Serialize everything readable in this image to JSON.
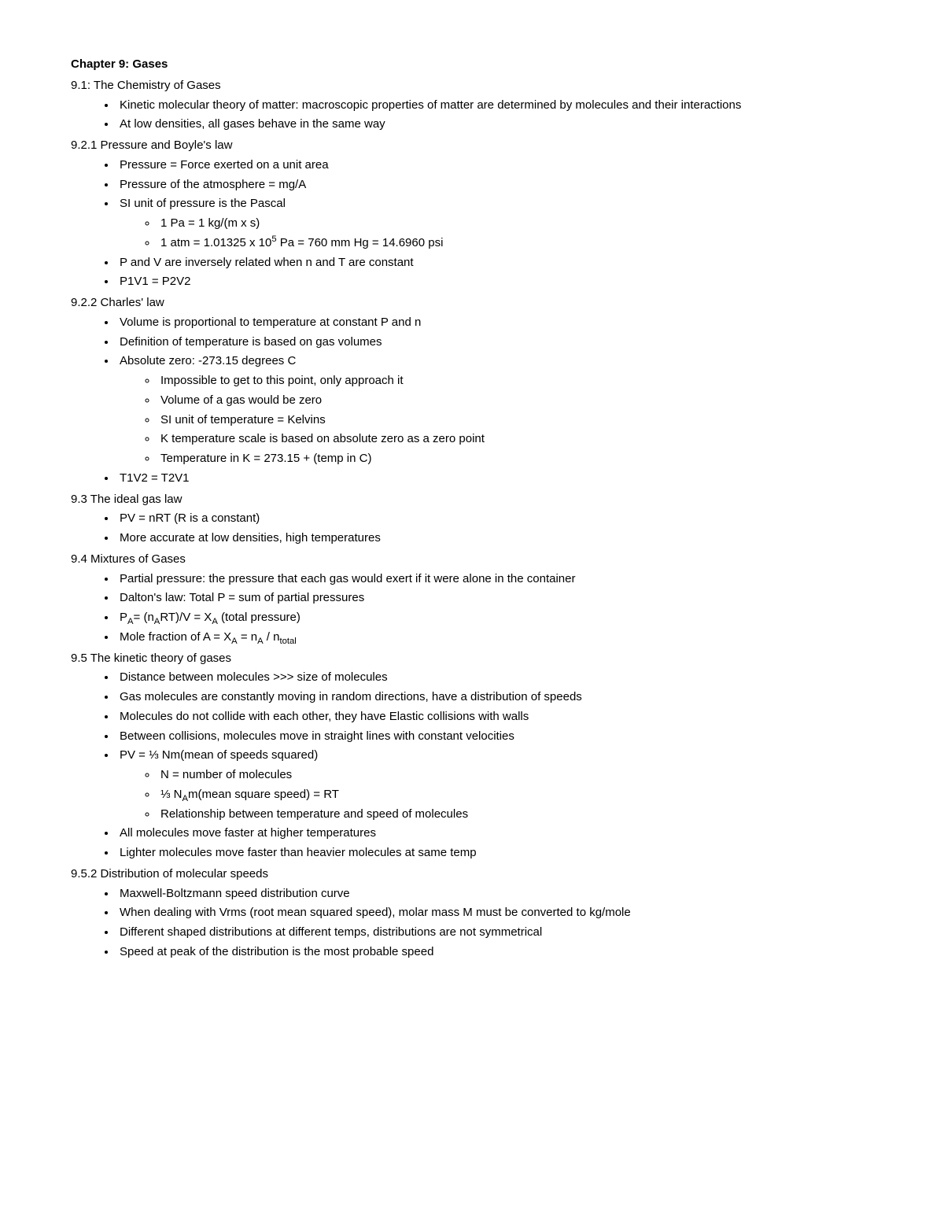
{
  "title": "Chapter 9: Gases",
  "sections": [
    {
      "heading": "9.1: The Chemistry of Gases",
      "items": [
        {
          "text": "Kinetic molecular theory of matter: macroscopic properties of matter are determined by molecules and their interactions"
        },
        {
          "text": "At low densities, all gases behave in the same way"
        }
      ]
    },
    {
      "heading": "9.2.1 Pressure and Boyle's law",
      "items": [
        {
          "text": "Pressure = Force exerted on a unit area"
        },
        {
          "text": "Pressure of the atmosphere = mg/A"
        },
        {
          "text": "SI unit of pressure is the Pascal",
          "sub": [
            {
              "text": "1 Pa = 1 kg/(m x s)"
            },
            {
              "html": "1 atm = 1.01325 x 10<sup>5</sup> Pa = 760 mm Hg = 14.6960 psi"
            }
          ]
        },
        {
          "text": "P and V are inversely related when n and T are constant"
        },
        {
          "text": "P1V1 = P2V2"
        }
      ]
    },
    {
      "heading": "9.2.2 Charles' law",
      "items": [
        {
          "text": "Volume is proportional to temperature at constant P and n"
        },
        {
          "text": "Definition of temperature is based on gas volumes"
        },
        {
          "text": "Absolute zero: -273.15 degrees C",
          "sub": [
            {
              "text": "Impossible to get to this point, only approach it"
            },
            {
              "text": "Volume of a gas would be zero"
            },
            {
              "text": "SI unit of temperature = Kelvins"
            },
            {
              "text": "K temperature scale is based on absolute zero as a zero point"
            },
            {
              "text": "Temperature in K = 273.15 + (temp in C)"
            }
          ]
        },
        {
          "text": "T1V2 = T2V1"
        }
      ]
    },
    {
      "heading": "9.3 The ideal gas law",
      "items": [
        {
          "text": "PV = nRT (R is a constant)"
        },
        {
          "text": "More accurate at low densities, high temperatures"
        }
      ]
    },
    {
      "heading": "9.4 Mixtures of Gases",
      "items": [
        {
          "text": "Partial pressure: the pressure that each gas would exert if it were alone in the container"
        },
        {
          "text": "Dalton's law: Total P = sum of partial pressures"
        },
        {
          "html": "P<sub>A</sub>= (n<sub>A</sub>RT)/V = X<sub>A</sub> (total pressure)"
        },
        {
          "html": "Mole fraction of A = X<sub>A</sub> = n<sub>A</sub> / n<sub>total</sub>"
        }
      ]
    },
    {
      "heading": "9.5 The kinetic theory of gases",
      "items": [
        {
          "text": "Distance between molecules >>> size of molecules"
        },
        {
          "text": "Gas molecules are constantly moving in random directions, have a distribution of speeds"
        },
        {
          "text": "Molecules do not collide with each other, they have Elastic collisions with walls"
        },
        {
          "text": "Between collisions, molecules move in straight lines with constant velocities"
        },
        {
          "text": "PV = ⅓ Nm(mean of speeds squared)",
          "sub": [
            {
              "text": "N = number of molecules"
            },
            {
              "html": "⅓ N<sub>A</sub>m(mean square speed) = RT"
            },
            {
              "text": "Relationship between temperature and speed of molecules"
            }
          ]
        },
        {
          "text": "All molecules move faster at higher temperatures"
        },
        {
          "text": "Lighter molecules move faster than heavier molecules at same temp"
        }
      ]
    },
    {
      "heading": "9.5.2 Distribution of molecular speeds",
      "items": [
        {
          "text": "Maxwell-Boltzmann speed distribution curve"
        },
        {
          "text": "When dealing with Vrms (root mean squared speed), molar mass M must be converted to kg/mole"
        },
        {
          "text": "Different shaped distributions at different temps, distributions are not symmetrical"
        },
        {
          "text": "Speed at peak of the distribution is the most probable speed"
        }
      ]
    }
  ],
  "style": {
    "font_family": "Arial",
    "font_size_pt": 11,
    "text_color": "#000000",
    "background_color": "#ffffff",
    "bullet_level1": "disc",
    "bullet_level2": "circle"
  }
}
